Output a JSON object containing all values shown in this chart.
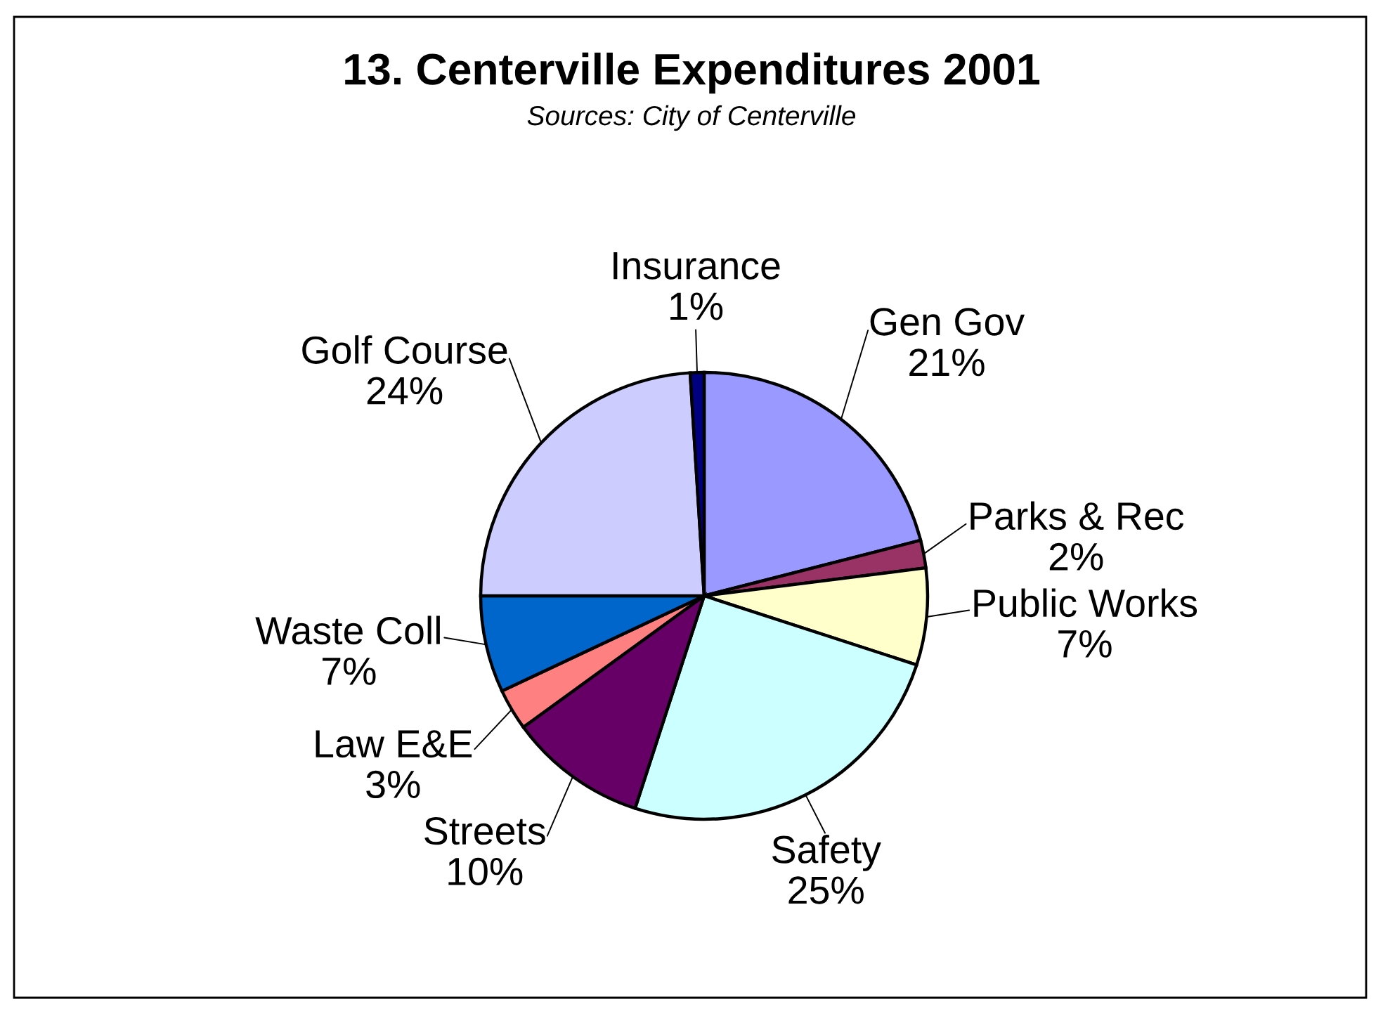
{
  "chart_data": {
    "type": "pie",
    "title": "13. Centerville Expenditures 2001",
    "annotations": [
      "Sources: City of Centerville"
    ],
    "categories": [
      "Gen Gov",
      "Parks & Rec",
      "Public Works",
      "Safety",
      "Streets",
      "Law E&E",
      "Waste Coll",
      "Golf Course",
      "Insurance"
    ],
    "values": [
      21,
      2,
      7,
      25,
      10,
      3,
      7,
      24,
      1
    ],
    "colors": [
      "#9999ff",
      "#993366",
      "#ffffcc",
      "#ccffff",
      "#660066",
      "#ff8080",
      "#0066cc",
      "#ccccff",
      "#000080"
    ],
    "value_labels": [
      "21%",
      "2%",
      "7%",
      "25%",
      "10%",
      "3%",
      "7%",
      "24%",
      "1%"
    ]
  }
}
